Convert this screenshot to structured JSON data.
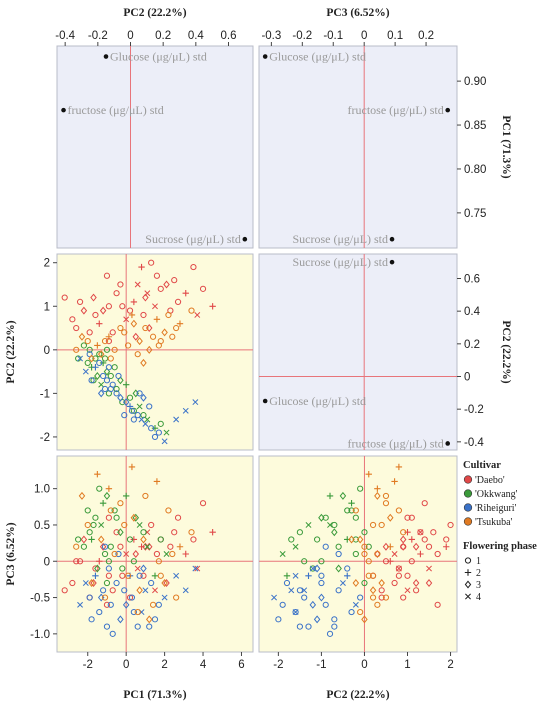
{
  "chart_data": [
    {
      "type": "scatter",
      "name": "loading-pc2-pc1",
      "x_axis_label": "PC2 (22.2%)",
      "y_axis_label": "PC1 (71.3%)",
      "xlim": [
        -0.45,
        0.75
      ],
      "ylim": [
        0.71,
        0.94
      ],
      "xticks": [
        -0.4,
        -0.2,
        0,
        0.2,
        0.4,
        0.6
      ],
      "xtick_labels": [
        "-0.4",
        "-0.2",
        "0",
        "0.2",
        "0.4",
        "0.6"
      ],
      "yticks": [
        0.75,
        0.8,
        0.85,
        0.9
      ],
      "ytick_labels": [
        "0.75",
        "0.80",
        "0.85",
        "0.90"
      ],
      "points": [
        {
          "x": -0.15,
          "y": 0.928,
          "label": "Glucose (μg/μL) std"
        },
        {
          "x": -0.41,
          "y": 0.867,
          "label": "fructose (μg/μL) std"
        },
        {
          "x": 0.7,
          "y": 0.72,
          "label": "Sucrose (μg/μL) std"
        }
      ]
    },
    {
      "type": "scatter",
      "name": "loading-pc3-pc1",
      "x_axis_label": "PC3 (6.52%)",
      "y_axis_label": "PC1 (71.3%)",
      "xlim": [
        -0.34,
        0.3
      ],
      "ylim": [
        0.71,
        0.94
      ],
      "xticks": [
        -0.3,
        -0.2,
        -0.1,
        0,
        0.1,
        0.2
      ],
      "xtick_labels": [
        "-0.3",
        "-0.2",
        "-0.1",
        "0",
        "0.1",
        "0.2"
      ],
      "yticks": [
        0.75,
        0.8,
        0.85,
        0.9
      ],
      "ytick_labels": [
        "0.75",
        "0.80",
        "0.85",
        "0.90"
      ],
      "points": [
        {
          "x": -0.32,
          "y": 0.928,
          "label": "Glucose (μg/μL) std"
        },
        {
          "x": 0.27,
          "y": 0.867,
          "label": "fructose (μg/μL) std"
        },
        {
          "x": 0.09,
          "y": 0.72,
          "label": "Sucrose (μg/μL) std"
        }
      ]
    },
    {
      "type": "scatter",
      "name": "loading-pc3-pc2",
      "x_axis_label": "PC3 (6.52%)",
      "y_axis_label": "PC2 (22.2%)",
      "xlim": [
        -0.34,
        0.3
      ],
      "ylim": [
        -0.45,
        0.75
      ],
      "yticks": [
        -0.4,
        -0.2,
        0,
        0.2,
        0.4,
        0.6
      ],
      "ytick_labels": [
        "-0.4",
        "-0.2",
        "0",
        "0.2",
        "0.4",
        "0.6"
      ],
      "points": [
        {
          "x": 0.09,
          "y": 0.7,
          "label": "Sucrose (μg/μL) std"
        },
        {
          "x": -0.32,
          "y": -0.15,
          "label": "Glucose (μg/μL) std"
        },
        {
          "x": 0.27,
          "y": -0.41,
          "label": "fructose (μg/μL) std"
        }
      ]
    },
    {
      "type": "scatter",
      "name": "scores-pc1-pc2",
      "x_axis_label": "PC1 (71.3%)",
      "y_axis_label": "PC2 (22.2%)",
      "xlim": [
        -3.6,
        6.6
      ],
      "ylim": [
        -2.3,
        2.2
      ],
      "yticks": [
        -2,
        -1,
        0,
        1,
        2
      ],
      "ytick_labels": [
        "-2",
        "-1",
        "0",
        "1",
        "2"
      ],
      "series_ref": "scores"
    },
    {
      "type": "scatter",
      "name": "scores-pc1-pc3",
      "x_axis_label": "PC1 (71.3%)",
      "y_axis_label": "PC3 (6.52%)",
      "xlim": [
        -3.6,
        6.6
      ],
      "ylim": [
        -1.25,
        1.45
      ],
      "xticks": [
        -2,
        0,
        2,
        4,
        6
      ],
      "xtick_labels": [
        "-2",
        "0",
        "2",
        "4",
        "6"
      ],
      "yticks": [
        -1,
        -0.5,
        0,
        0.5,
        1
      ],
      "ytick_labels": [
        "-1.0",
        "-0.5",
        "0",
        "0.5",
        "1.0"
      ],
      "series_ref": "scores"
    },
    {
      "type": "scatter",
      "name": "scores-pc2-pc3",
      "x_axis_label": "PC2 (22.2%)",
      "y_axis_label": "PC3 (6.52%)",
      "xlim": [
        -2.45,
        2.15
      ],
      "ylim": [
        -1.25,
        1.45
      ],
      "xticks": [
        -2,
        -1,
        0,
        1,
        2
      ],
      "xtick_labels": [
        "-2",
        "-1",
        "0",
        "1",
        "2"
      ],
      "series_ref": "scores"
    }
  ],
  "scores": {
    "series": [
      {
        "name": "'Daebo'",
        "color": "#e04848",
        "points": [
          [
            0.8,
            1.9,
            0.2,
            "+"
          ],
          [
            1.3,
            2.0,
            0.5,
            "o"
          ],
          [
            1.8,
            1.4,
            0.3,
            "o"
          ],
          [
            2.5,
            1.6,
            0.4,
            "o"
          ],
          [
            1.0,
            1.2,
            0.2,
            "d"
          ],
          [
            0.6,
            1.5,
            -0.1,
            "x"
          ],
          [
            -0.5,
            1.3,
            0.4,
            "o"
          ],
          [
            -0.9,
            1.0,
            0.6,
            "o"
          ],
          [
            -1.2,
            0.9,
            0.2,
            "d"
          ],
          [
            -0.2,
            1.0,
            -0.2,
            "o"
          ],
          [
            -1.6,
            0.8,
            -0.1,
            "o"
          ],
          [
            0.4,
            1.1,
            0.3,
            "+"
          ],
          [
            1.6,
            1.7,
            0.1,
            "o"
          ],
          [
            2.1,
            1.5,
            -0.3,
            "d"
          ],
          [
            3.5,
            1.9,
            0.3,
            "o"
          ],
          [
            4.0,
            1.4,
            0.8,
            "o"
          ],
          [
            -2.4,
            1.1,
            0.0,
            "o"
          ],
          [
            -3.2,
            1.2,
            -0.4,
            "o"
          ],
          [
            -1.9,
            0.4,
            -0.5,
            "o"
          ],
          [
            -1.4,
            0.6,
            0.0,
            "+"
          ],
          [
            0.0,
            0.7,
            0.1,
            "x"
          ],
          [
            0.9,
            0.8,
            -0.2,
            "o"
          ],
          [
            1.2,
            0.5,
            0.2,
            "d"
          ],
          [
            -0.7,
            0.4,
            -0.4,
            "o"
          ],
          [
            -2.8,
            0.7,
            -0.3,
            "o"
          ],
          [
            -2.2,
            0.9,
            0.3,
            "d"
          ],
          [
            2.7,
            1.1,
            0.6,
            "o"
          ],
          [
            3.1,
            1.3,
            0.1,
            "+"
          ],
          [
            -1.0,
            1.7,
            -0.6,
            "o"
          ],
          [
            -0.3,
            1.5,
            0.2,
            "o"
          ],
          [
            4.5,
            1.0,
            0.4,
            "+"
          ],
          [
            1.5,
            1.0,
            -0.4,
            "x"
          ],
          [
            0.2,
            0.9,
            -0.5,
            "o"
          ],
          [
            2.3,
            0.9,
            0.2,
            "o"
          ],
          [
            -2.6,
            0.5,
            0.0,
            "o"
          ],
          [
            -1.7,
            1.2,
            -0.3,
            "d"
          ],
          [
            1.1,
            1.3,
            0.4,
            "x"
          ],
          [
            0.5,
            0.3,
            0.1,
            "d"
          ],
          [
            -0.9,
            0.2,
            -0.2,
            "o"
          ],
          [
            3.7,
            0.8,
            -0.1,
            "x"
          ]
        ]
      },
      {
        "name": "'Okkwang'",
        "color": "#3a9a3a",
        "points": [
          [
            -1.6,
            -0.2,
            0.6,
            "o"
          ],
          [
            -1.2,
            -0.3,
            0.8,
            "+"
          ],
          [
            -1.9,
            0.0,
            0.4,
            "o"
          ],
          [
            -1.0,
            -0.5,
            0.9,
            "d"
          ],
          [
            -0.5,
            -0.9,
            0.6,
            "o"
          ],
          [
            0.2,
            -1.1,
            0.3,
            "o"
          ],
          [
            0.7,
            -1.3,
            0.5,
            "x"
          ],
          [
            -0.8,
            -0.6,
            0.2,
            "o"
          ],
          [
            -1.4,
            -0.1,
            1.0,
            "o"
          ],
          [
            -1.8,
            -0.4,
            0.3,
            "+"
          ],
          [
            -1.1,
            -0.2,
            0.1,
            "o"
          ],
          [
            -0.3,
            -0.7,
            0.4,
            "d"
          ],
          [
            0.4,
            -1.4,
            0.0,
            "o"
          ],
          [
            1.1,
            -1.6,
            0.2,
            "x"
          ],
          [
            1.5,
            -1.8,
            -0.2,
            "+"
          ],
          [
            -2.0,
            -0.3,
            0.7,
            "o"
          ],
          [
            -1.3,
            -0.8,
            0.5,
            "x"
          ],
          [
            -0.9,
            -1.0,
            0.0,
            "o"
          ],
          [
            0.9,
            -1.5,
            0.4,
            "o"
          ],
          [
            -1.5,
            -0.6,
            -0.1,
            "d"
          ],
          [
            -2.2,
            0.1,
            0.2,
            "o"
          ],
          [
            -0.6,
            -0.4,
            0.7,
            "o"
          ],
          [
            0.0,
            -0.8,
            0.9,
            "+"
          ],
          [
            2.1,
            -1.9,
            0.1,
            "x"
          ],
          [
            -1.7,
            -0.7,
            0.5,
            "o"
          ],
          [
            -1.0,
            0.0,
            -0.3,
            "o"
          ],
          [
            0.5,
            -1.0,
            0.6,
            "d"
          ],
          [
            -2.5,
            -0.2,
            0.3,
            "o"
          ],
          [
            1.8,
            -1.7,
            0.3,
            "o"
          ],
          [
            -0.2,
            -1.2,
            -0.1,
            "o"
          ]
        ]
      },
      {
        "name": "'Riheiguri'",
        "color": "#3a72c8",
        "points": [
          [
            -1.2,
            -0.6,
            -0.4,
            "o"
          ],
          [
            -0.8,
            -0.9,
            -0.6,
            "o"
          ],
          [
            -0.3,
            -1.1,
            -0.8,
            "d"
          ],
          [
            0.3,
            -1.4,
            -0.5,
            "o"
          ],
          [
            0.8,
            -1.6,
            -0.7,
            "x"
          ],
          [
            1.3,
            -1.8,
            -0.3,
            "o"
          ],
          [
            1.7,
            -1.9,
            -0.6,
            "o"
          ],
          [
            -1.6,
            -0.4,
            -0.2,
            "+"
          ],
          [
            -1.0,
            -0.7,
            -0.9,
            "o"
          ],
          [
            -0.5,
            -1.0,
            -0.3,
            "o"
          ],
          [
            0.0,
            -1.2,
            -0.6,
            "d"
          ],
          [
            0.6,
            -1.5,
            -0.9,
            "o"
          ],
          [
            1.0,
            -1.7,
            -0.4,
            "x"
          ],
          [
            -1.4,
            -0.3,
            -0.7,
            "o"
          ],
          [
            -1.9,
            -0.1,
            -0.5,
            "o"
          ],
          [
            -2.1,
            -0.5,
            -0.3,
            "x"
          ],
          [
            -0.7,
            -0.8,
            -1.0,
            "o"
          ],
          [
            0.2,
            -1.3,
            -0.2,
            "+"
          ],
          [
            1.5,
            -2.0,
            -0.8,
            "o"
          ],
          [
            2.0,
            -2.1,
            -0.5,
            "x"
          ],
          [
            -1.1,
            -0.9,
            0.2,
            "o"
          ],
          [
            -0.4,
            -0.6,
            0.1,
            "o"
          ],
          [
            0.9,
            -1.1,
            -0.1,
            "d"
          ],
          [
            -1.8,
            -0.7,
            -0.8,
            "o"
          ],
          [
            0.4,
            -1.6,
            -0.7,
            "o"
          ],
          [
            -2.4,
            -0.2,
            -0.6,
            "x"
          ],
          [
            -0.1,
            -1.5,
            -0.4,
            "o"
          ],
          [
            1.2,
            -1.3,
            -0.9,
            "o"
          ],
          [
            -1.3,
            -1.0,
            -0.5,
            "d"
          ],
          [
            2.6,
            -1.6,
            -0.2,
            "x"
          ],
          [
            3.1,
            -1.4,
            -0.4,
            "x"
          ],
          [
            3.6,
            -1.2,
            -0.1,
            "x"
          ],
          [
            -0.9,
            -0.4,
            -0.1,
            "o"
          ],
          [
            0.7,
            -1.0,
            -0.2,
            "o"
          ]
        ]
      },
      {
        "name": "'Tsukuba'",
        "color": "#e07a22",
        "points": [
          [
            -1.5,
            0.1,
            1.2,
            "+"
          ],
          [
            -0.9,
            0.3,
            1.0,
            "+"
          ],
          [
            -0.3,
            0.5,
            0.8,
            "o"
          ],
          [
            0.4,
            0.6,
            0.6,
            "d"
          ],
          [
            1.0,
            0.5,
            0.9,
            "o"
          ],
          [
            1.6,
            0.7,
            1.1,
            "+"
          ],
          [
            2.2,
            0.8,
            0.7,
            "o"
          ],
          [
            -2.0,
            0.2,
            0.5,
            "o"
          ],
          [
            -1.3,
            -0.1,
            0.3,
            "d"
          ],
          [
            -0.6,
            0.0,
            0.1,
            "o"
          ],
          [
            0.1,
            0.1,
            -0.2,
            "o"
          ],
          [
            0.7,
            0.2,
            -0.4,
            "d"
          ],
          [
            1.4,
            0.3,
            -0.6,
            "o"
          ],
          [
            2.0,
            0.4,
            -0.3,
            "d"
          ],
          [
            2.6,
            0.5,
            -0.5,
            "o"
          ],
          [
            -2.6,
            0.0,
            0.2,
            "o"
          ],
          [
            -1.8,
            -0.2,
            -0.3,
            "d"
          ],
          [
            -1.1,
            0.2,
            -0.5,
            "o"
          ],
          [
            0.6,
            -0.1,
            -0.7,
            "o"
          ],
          [
            1.2,
            0.0,
            -0.8,
            "d"
          ],
          [
            1.8,
            0.2,
            -0.2,
            "o"
          ],
          [
            2.8,
            0.6,
            0.2,
            "+"
          ],
          [
            3.4,
            0.9,
            0.4,
            "o"
          ],
          [
            -0.1,
            0.4,
            0.5,
            "o"
          ],
          [
            0.9,
            -0.3,
            0.3,
            "d"
          ],
          [
            -0.8,
            -0.2,
            0.7,
            "o"
          ],
          [
            1.7,
            0.1,
            0.0,
            "o"
          ],
          [
            -2.3,
            0.3,
            0.9,
            "d"
          ],
          [
            0.3,
            0.8,
            1.3,
            "+"
          ],
          [
            2.4,
            0.3,
            0.1,
            "o"
          ]
        ]
      }
    ]
  },
  "legend": {
    "cultivar_title": "Cultivar",
    "cultivars": [
      {
        "label": "'Daebo'",
        "color": "#e04848"
      },
      {
        "label": "'Okkwang'",
        "color": "#3a9a3a"
      },
      {
        "label": "'Riheiguri'",
        "color": "#3a72c8"
      },
      {
        "label": "'Tsukuba'",
        "color": "#e07a22"
      }
    ],
    "phase_title": "Flowering phase",
    "phases": [
      {
        "marker": "o",
        "label": "1"
      },
      {
        "marker": "+",
        "label": "2"
      },
      {
        "marker": "d",
        "label": "3"
      },
      {
        "marker": "x",
        "label": "4"
      }
    ]
  },
  "colors": {
    "loading_bg": "#eceef8",
    "score_bg": "#fdfbdc",
    "ref_line": "#e8747a"
  }
}
